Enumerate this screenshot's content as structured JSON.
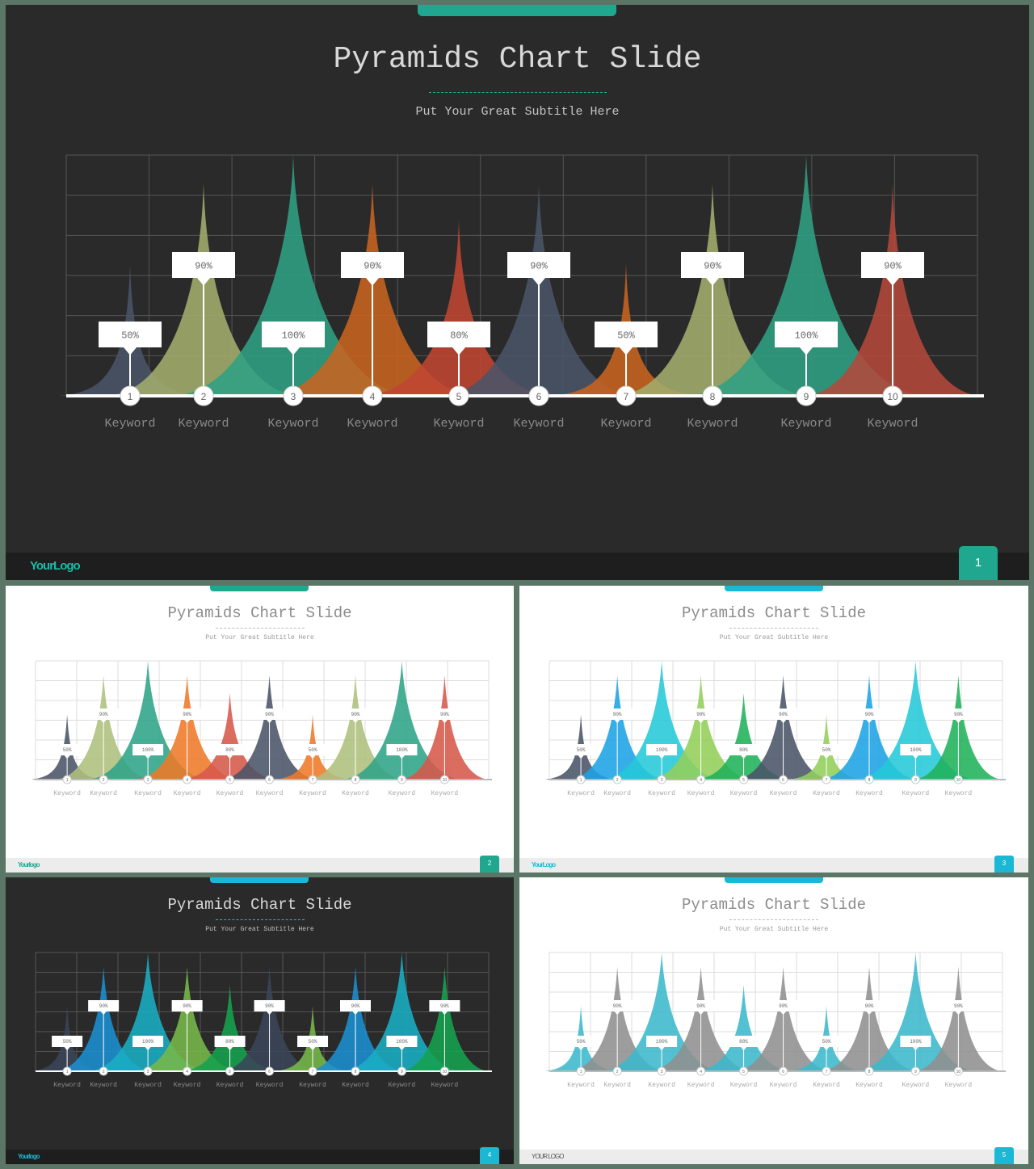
{
  "slides": [
    {
      "title": "Pyramids Chart Slide",
      "subtitle": "Put Your Great Subtitle Here",
      "logo": "YourLogo",
      "page": "1",
      "theme": "dark",
      "accent": "#1fa88f"
    },
    {
      "title": "Pyramids Chart Slide",
      "subtitle": "Put Your Great Subtitle Here",
      "logo": "Yourlogo",
      "page": "2",
      "theme": "light",
      "accent": "#1fa88f"
    },
    {
      "title": "Pyramids Chart Slide",
      "subtitle": "Put Your Great Subtitle Here",
      "logo": "YourLogo",
      "page": "3",
      "theme": "light",
      "accent": "#1bb8d6"
    },
    {
      "title": "Pyramids Chart Slide",
      "subtitle": "Put Your Great Subtitle Here",
      "logo": "Yourlogo",
      "page": "4",
      "theme": "dark",
      "accent": "#1bb8d6"
    },
    {
      "title": "Pyramids Chart Slide",
      "subtitle": "Put Your Great Subtitle Here",
      "logo": "YOUR LOGO",
      "page": "5",
      "theme": "light",
      "accent": "#1bb8d6"
    }
  ],
  "chart_data": {
    "type": "area",
    "categories": [
      "1",
      "2",
      "3",
      "4",
      "5",
      "6",
      "7",
      "8",
      "9",
      "10"
    ],
    "category_labels": [
      "Keyword",
      "Keyword",
      "Keyword",
      "Keyword",
      "Keyword",
      "Keyword",
      "Keyword",
      "Keyword",
      "Keyword",
      "Keyword"
    ],
    "values": [
      50,
      90,
      100,
      90,
      80,
      90,
      50,
      90,
      100,
      90
    ],
    "value_labels": [
      "50%",
      "90%",
      "100%",
      "90%",
      "80%",
      "90%",
      "50%",
      "90%",
      "100%",
      "90%"
    ],
    "ylim": [
      0,
      100
    ],
    "grid": true,
    "palettes": [
      [
        "#4a5468",
        "#a3ad6c",
        "#2fa083",
        "#c8631f",
        "#bf4632",
        "#4a5468",
        "#c8631f",
        "#a3ad6c",
        "#2fa083",
        "#b4483a"
      ],
      [
        "#4a5468",
        "#aebf7c",
        "#2fa489",
        "#ee7a28",
        "#d6584a",
        "#4a5468",
        "#ee7a28",
        "#aebf7c",
        "#2fa489",
        "#d6584a"
      ],
      [
        "#4a5468",
        "#1ba3e4",
        "#25c8d8",
        "#93cf5a",
        "#1fb25a",
        "#4a5468",
        "#93cf5a",
        "#1ba3e4",
        "#25c8d8",
        "#1fb25a"
      ],
      [
        "#3a4558",
        "#1a8fd0",
        "#1aaec4",
        "#78b84a",
        "#16a24e",
        "#3a4558",
        "#78b84a",
        "#1a8fd0",
        "#1aaec4",
        "#16a24e"
      ],
      [
        "#3bb8cc",
        "#8f8f8f",
        "#3bb8cc",
        "#8f8f8f",
        "#3bb8cc",
        "#8f8f8f",
        "#3bb8cc",
        "#8f8f8f",
        "#3bb8cc",
        "#8f8f8f"
      ]
    ]
  }
}
